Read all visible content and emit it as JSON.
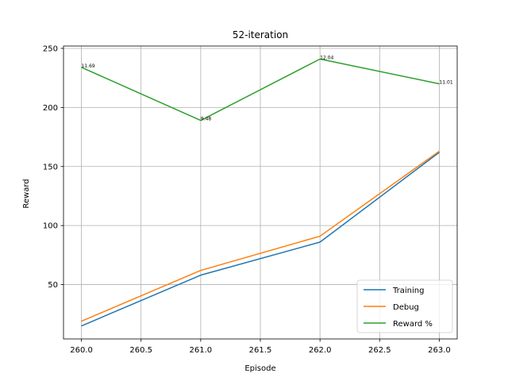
{
  "chart_data": {
    "type": "line",
    "title": "52-iteration",
    "xlabel": "Episode",
    "ylabel": "Reward",
    "x": [
      260.0,
      261.0,
      262.0,
      263.0
    ],
    "xlim": [
      259.85,
      263.15
    ],
    "ylim": [
      4,
      252
    ],
    "xticks": [
      260.0,
      260.5,
      261.0,
      261.5,
      262.0,
      262.5,
      263.0
    ],
    "xtick_labels": [
      "260.0",
      "260.5",
      "261.0",
      "261.5",
      "262.0",
      "262.5",
      "263.0"
    ],
    "yticks": [
      50,
      100,
      150,
      200,
      250
    ],
    "ytick_labels": [
      "50",
      "100",
      "150",
      "200",
      "250"
    ],
    "grid": true,
    "legend_position": "lower-right",
    "series": [
      {
        "name": "Training",
        "color": "#1f77b4",
        "values": [
          15,
          58,
          86,
          162
        ]
      },
      {
        "name": "Debug",
        "color": "#ff7f0e",
        "values": [
          19,
          62,
          91,
          163
        ]
      },
      {
        "name": "Reward %",
        "color": "#2ca02c",
        "values": [
          234,
          189,
          241,
          220
        ],
        "point_labels": [
          "11.69",
          "9.48",
          "12.04",
          "11.01"
        ]
      }
    ]
  }
}
